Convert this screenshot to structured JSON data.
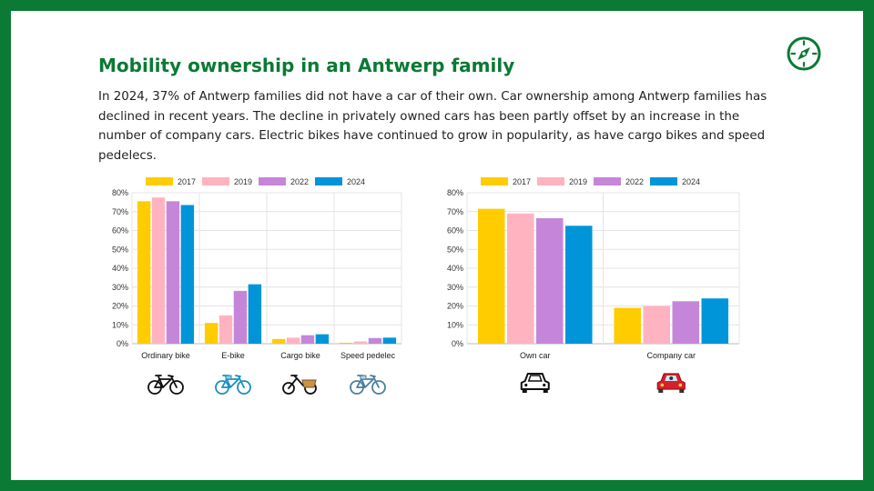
{
  "slide": {
    "title": "Mobility ownership in an Antwerp family",
    "intro": "In 2024, 37% of Antwerp families did not have a car of their own. Car ownership among Antwerp families has declined in recent years. The decline in privately owned cars has been partly offset by an increase in the number of company cars. Electric bikes have continued to grow in popularity, as have cargo bikes and speed pedelecs.",
    "logo_icon": "compass-icon",
    "colors": {
      "border": "#0a7a34",
      "title": "#0a7a34",
      "background": "#ffffff"
    }
  },
  "chart_data": [
    {
      "type": "bar",
      "title": "",
      "xlabel": "",
      "ylabel": "",
      "categories": [
        "Ordinary bike",
        "E-bike",
        "Cargo bike",
        "Speed pedelec"
      ],
      "category_icons": [
        "bicycle-icon",
        "e-bike-icon",
        "cargo-bike-icon",
        "speed-pedelec-icon"
      ],
      "series": [
        {
          "name": "2017",
          "color": "#ffcc00",
          "values": [
            75.5,
            11,
            2.5,
            0.5
          ]
        },
        {
          "name": "2019",
          "color": "#ffb3c1",
          "values": [
            77.5,
            15,
            3.2,
            1.2
          ]
        },
        {
          "name": "2022",
          "color": "#c586d9",
          "values": [
            75.5,
            28,
            4.5,
            3
          ]
        },
        {
          "name": "2024",
          "color": "#0095d9",
          "values": [
            73.5,
            31.5,
            5,
            3.2
          ]
        }
      ],
      "ylim": [
        0,
        80
      ],
      "yticks": [
        "0%",
        "10%",
        "20%",
        "30%",
        "40%",
        "50%",
        "60%",
        "70%",
        "80%"
      ],
      "grid": true,
      "legend": "top"
    },
    {
      "type": "bar",
      "title": "",
      "xlabel": "",
      "ylabel": "",
      "categories": [
        "Own car",
        "Company car"
      ],
      "category_icons": [
        "car-outline-icon",
        "red-car-icon"
      ],
      "series": [
        {
          "name": "2017",
          "color": "#ffcc00",
          "values": [
            71.5,
            19
          ]
        },
        {
          "name": "2019",
          "color": "#ffb3c1",
          "values": [
            69,
            20
          ]
        },
        {
          "name": "2022",
          "color": "#c586d9",
          "values": [
            66.5,
            22.5
          ]
        },
        {
          "name": "2024",
          "color": "#0095d9",
          "values": [
            62.5,
            24
          ]
        }
      ],
      "ylim": [
        0,
        80
      ],
      "yticks": [
        "0%",
        "10%",
        "20%",
        "30%",
        "40%",
        "50%",
        "60%",
        "70%",
        "80%"
      ],
      "grid": true,
      "legend": "top"
    }
  ]
}
